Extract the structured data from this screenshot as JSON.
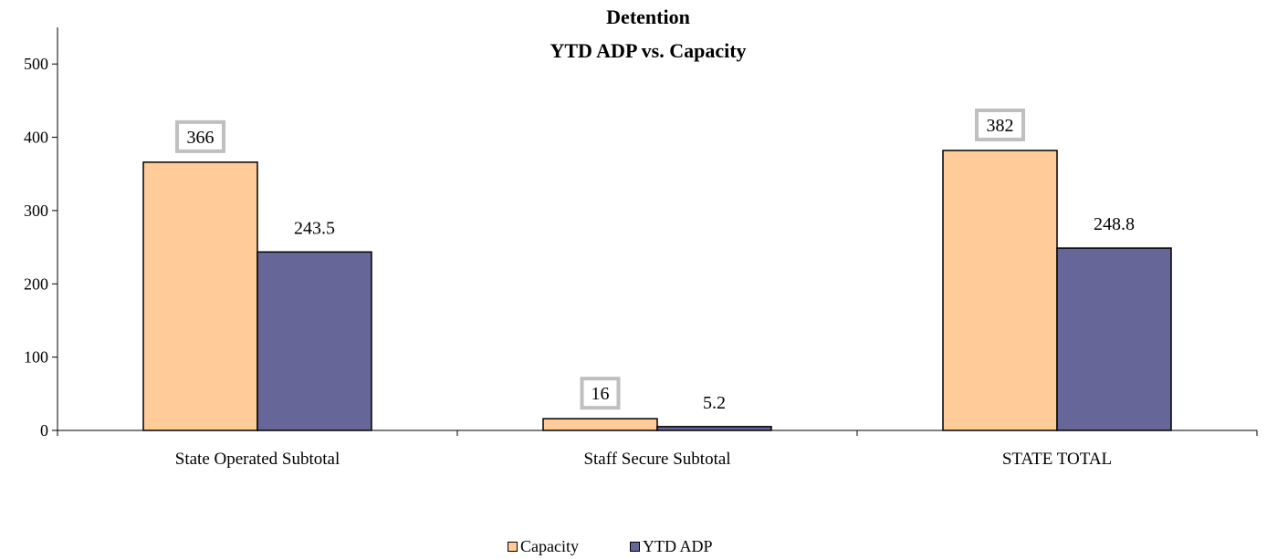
{
  "chart_data": {
    "type": "bar",
    "title": [
      "Detention",
      "YTD ADP vs. Capacity"
    ],
    "categories": [
      "State Operated Subtotal",
      "Staff Secure Subtotal",
      "STATE TOTAL"
    ],
    "series": [
      {
        "name": "Capacity",
        "values": [
          366,
          16,
          382
        ],
        "labels": [
          "366",
          "16",
          "382"
        ],
        "color": "#FFCC99",
        "label_boxed": true
      },
      {
        "name": "YTD ADP",
        "values": [
          243.5,
          5.2,
          248.8
        ],
        "labels": [
          "243.5",
          "5.2",
          "248.8"
        ],
        "color": "#666699",
        "label_boxed": false
      }
    ],
    "ylim": [
      0,
      550
    ],
    "yticks": [
      0,
      100,
      200,
      300,
      400,
      500
    ],
    "grid": false,
    "legend": "bottom-center",
    "label_box_color": "#BFBFBF"
  }
}
